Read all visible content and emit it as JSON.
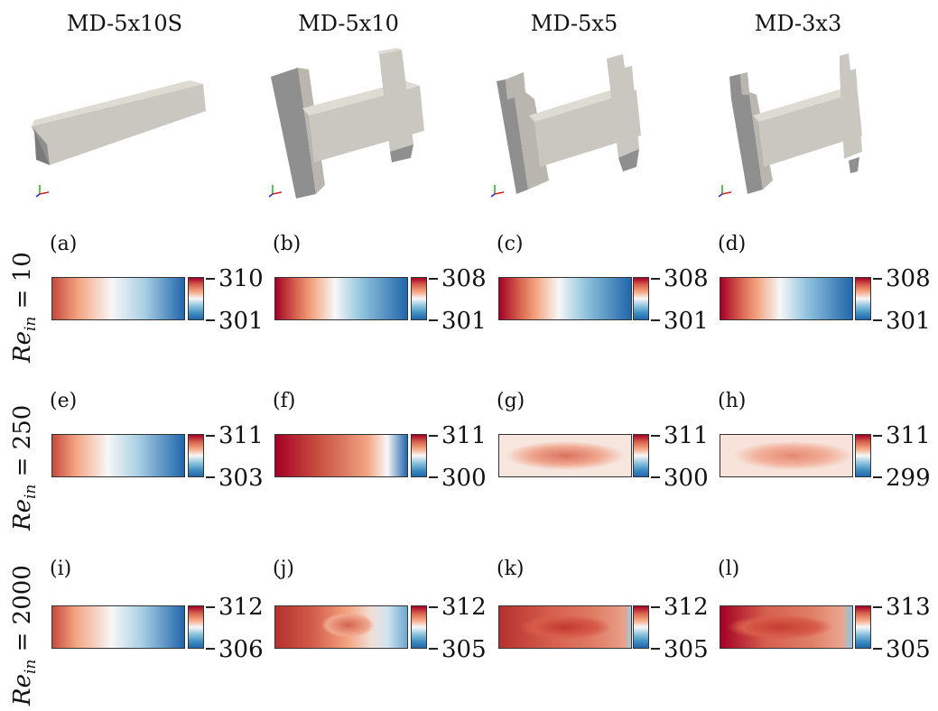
{
  "columns": [
    {
      "title": "MD-5x10S"
    },
    {
      "title": "MD-5x10"
    },
    {
      "title": "MD-5x5"
    },
    {
      "title": "MD-3x3"
    }
  ],
  "rows": [
    {
      "label_main": "Re",
      "label_sub": "in",
      "label_value": " = 10"
    },
    {
      "label_main": "Re",
      "label_sub": "in",
      "label_value": " = 250"
    },
    {
      "label_main": "Re",
      "label_sub": "in",
      "label_value": " = 2000"
    }
  ],
  "panels": [
    {
      "label": "(a)",
      "max": "310",
      "min": "301"
    },
    {
      "label": "(b)",
      "max": "308",
      "min": "301"
    },
    {
      "label": "(c)",
      "max": "308",
      "min": "301"
    },
    {
      "label": "(d)",
      "max": "308",
      "min": "301"
    },
    {
      "label": "(e)",
      "max": "311",
      "min": "303"
    },
    {
      "label": "(f)",
      "max": "311",
      "min": "300"
    },
    {
      "label": "(g)",
      "max": "311",
      "min": "300"
    },
    {
      "label": "(h)",
      "max": "311",
      "min": "299"
    },
    {
      "label": "(i)",
      "max": "312",
      "min": "306"
    },
    {
      "label": "(j)",
      "max": "312",
      "min": "305"
    },
    {
      "label": "(k)",
      "max": "312",
      "min": "305"
    },
    {
      "label": "(l)",
      "max": "313",
      "min": "305"
    }
  ],
  "colors": {
    "hot": "#a50026",
    "warm": "#d6604d",
    "neutral": "#f7f7f7",
    "cool": "#4393c3",
    "cold": "#2166ac",
    "solid_face": "#c9c7bf",
    "solid_side": "#8f8f8f",
    "solid_top": "#dedbd2"
  }
}
